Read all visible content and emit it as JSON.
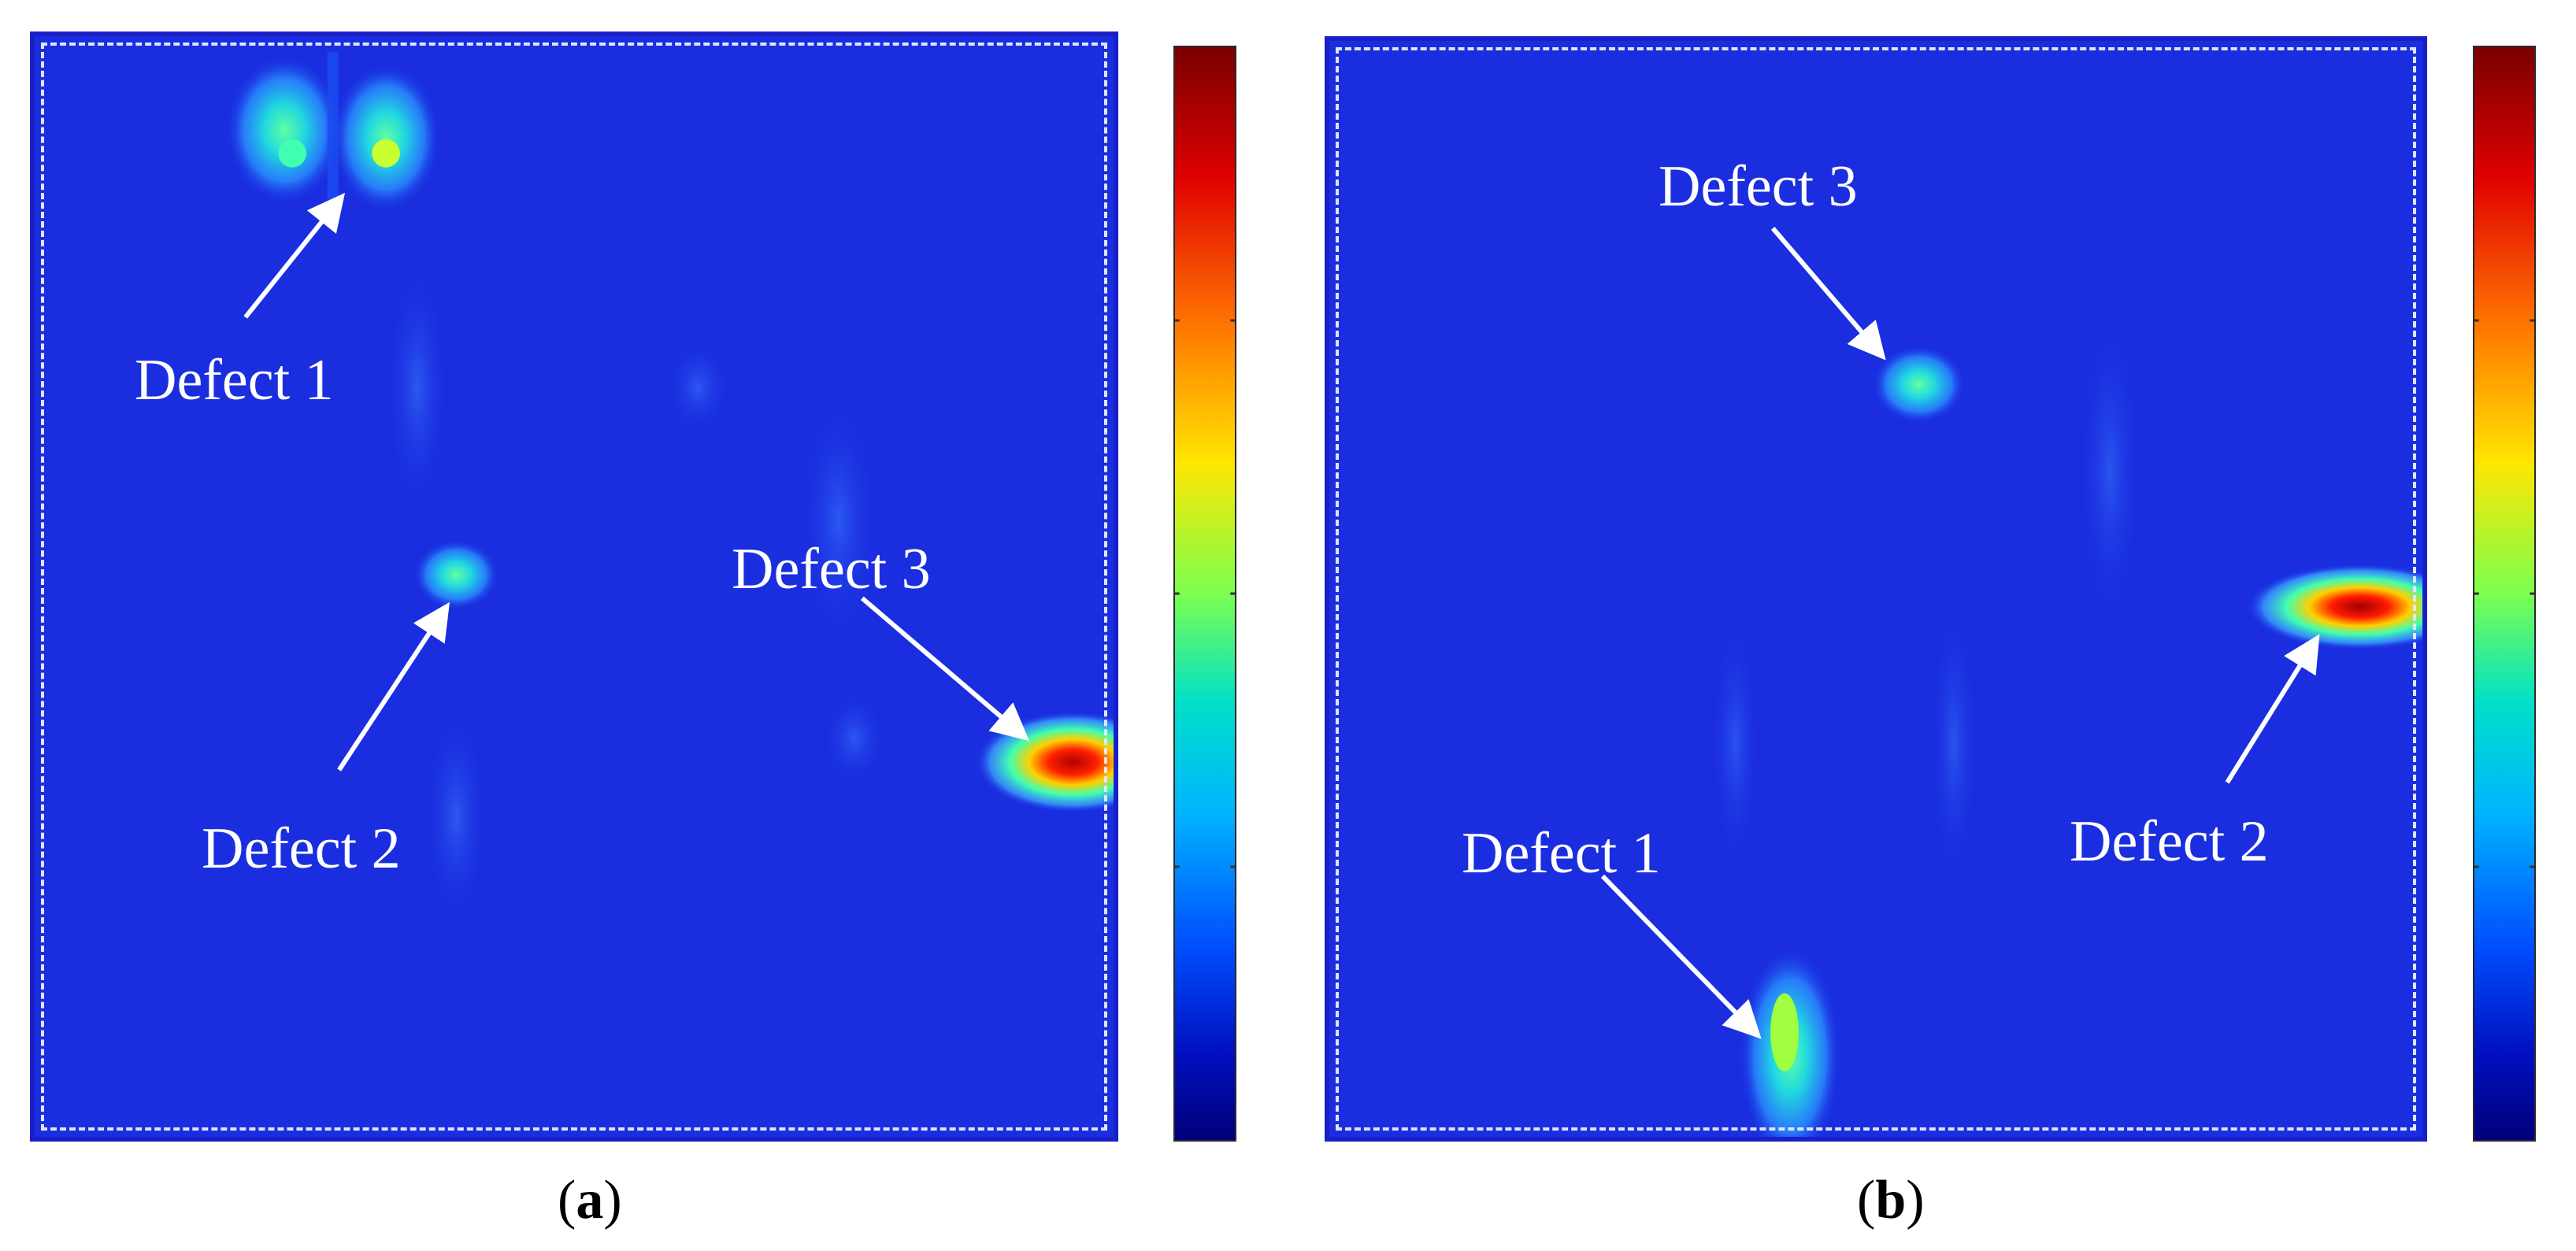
{
  "panel_a": {
    "caption_open": "(",
    "caption_letter": "a",
    "caption_close": ")",
    "labels": {
      "defect1": "Defect 1",
      "defect2": "Defect 2",
      "defect3": "Defect 3"
    }
  },
  "panel_b": {
    "caption_open": "(",
    "caption_letter": "b",
    "caption_close": ")",
    "labels": {
      "defect1": "Defect 1",
      "defect2": "Defect 2",
      "defect3": "Defect 3"
    }
  },
  "colors": {
    "background_blue": "#1a2ee0",
    "frame_blue": "#1a20c8",
    "arrow_white": "#ffffff",
    "colormap": [
      "#7a0000",
      "#e00000",
      "#ff7a00",
      "#ffe600",
      "#7cff50",
      "#00e0c8",
      "#00b4ff",
      "#0050ff",
      "#0010c0",
      "#00007a"
    ]
  }
}
